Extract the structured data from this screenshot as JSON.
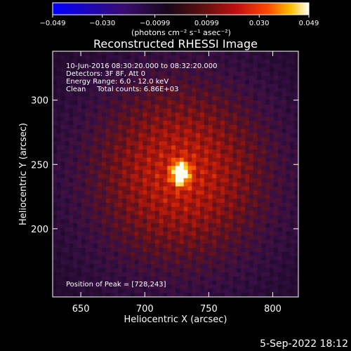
{
  "chart_data": {
    "type": "heatmap",
    "title": "Reconstructed RHESSI Image",
    "xlabel": "Heliocentric X (arcsec)",
    "ylabel": "Heliocentric Y (arcsec)",
    "xlim": [
      628,
      820
    ],
    "ylim": [
      147,
      338
    ],
    "x_ticks": [
      650,
      700,
      750,
      800
    ],
    "y_ticks": [
      200,
      250,
      300
    ],
    "colorbar": {
      "range": [
        -0.049,
        0.049
      ],
      "ticks": [
        -0.049,
        -0.03,
        -0.0099,
        0.0099,
        0.03,
        0.049
      ],
      "tick_labels": [
        "−0.049",
        "−0.030",
        "−0.0099",
        "0.0099",
        "0.030",
        "0.049"
      ],
      "label": "(photons cm⁻² s⁻¹ asec⁻²)",
      "stops": [
        "#0000ff",
        "#3a0c6e",
        "#1a0a2a",
        "#5a1010",
        "#c01010",
        "#ff4000",
        "#ffb000",
        "#ffffff"
      ]
    },
    "annotations": {
      "time_range": "10-Jun-2016 08:30:20.000 to 08:32:20.000",
      "detectors": "Detectors: 3F 8F, Att 0",
      "energy": "Energy Range: 6.0 - 12.0 keV",
      "clean": "Clean     Total counts: 6.86E+03",
      "peak": "Position of Peak = [728,243]"
    },
    "peak": {
      "x": 728,
      "y": 243
    },
    "grid": false
  },
  "footer": {
    "date": "5-Sep-2022 18:12"
  }
}
